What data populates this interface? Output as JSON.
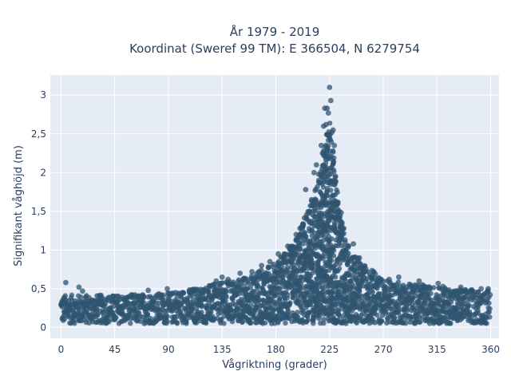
{
  "chart_data": {
    "type": "scatter",
    "title": "År 1979 - 2019",
    "subtitle": "Koordinat (Sweref 99 TM): E 366504, N 6279754",
    "xlabel": "Vågriktning (grader)",
    "ylabel": "Signifikant våghöjd (m)",
    "xlim": [
      -9,
      367
    ],
    "ylim": [
      -0.14,
      3.26
    ],
    "x_ticks": [
      0,
      45,
      90,
      135,
      180,
      225,
      270,
      315,
      360
    ],
    "x_tick_labels": [
      "0",
      "45",
      "90",
      "135",
      "180",
      "225",
      "270",
      "315",
      "360"
    ],
    "y_ticks": [
      0,
      0.5,
      1,
      1.5,
      2,
      2.5,
      3
    ],
    "y_tick_labels": [
      "0",
      "0,5",
      "1",
      "1,5",
      "2",
      "2,5",
      "3"
    ],
    "grid": true,
    "legend": "none",
    "colors": {
      "marker": "#2f5470",
      "plot_bg": "#e5ecf6",
      "grid": "#ffffff",
      "text": "#2a3f5f"
    },
    "envelope": {
      "x": [
        0,
        45,
        90,
        135,
        160,
        180,
        195,
        205,
        212,
        218,
        222,
        225,
        228,
        232,
        238,
        245,
        270,
        315,
        360
      ],
      "y_max": [
        0.42,
        0.42,
        0.45,
        0.58,
        0.68,
        0.85,
        1.1,
        1.45,
        1.75,
        2.1,
        2.45,
        2.7,
        2.3,
        1.7,
        1.2,
        0.95,
        0.62,
        0.52,
        0.48
      ]
    },
    "series": [
      {
        "x": [
          4,
          15,
          18,
          73,
          89,
          96,
          128,
          130,
          135,
          140,
          150,
          160,
          168,
          175,
          182,
          190,
          197,
          202,
          205,
          208,
          210,
          212,
          214,
          216,
          218,
          219,
          220,
          221,
          222,
          223,
          224,
          225,
          226,
          227,
          228,
          229,
          230,
          232,
          234,
          238,
          245,
          250,
          262,
          275,
          283,
          292,
          300,
          303,
          316,
          320,
          335,
          352,
          358
        ],
        "y": [
          0.58,
          0.52,
          0.47,
          0.48,
          0.5,
          0.45,
          0.55,
          0.6,
          0.65,
          0.62,
          0.7,
          0.72,
          0.8,
          0.85,
          0.95,
          1.05,
          1.2,
          1.3,
          1.78,
          1.5,
          1.65,
          2.0,
          2.1,
          1.9,
          2.35,
          2.25,
          2.6,
          2.83,
          2.62,
          2.83,
          2.77,
          3.1,
          2.93,
          2.52,
          2.55,
          2.35,
          1.95,
          1.6,
          1.3,
          1.1,
          1.08,
          0.9,
          0.72,
          0.62,
          0.65,
          0.56,
          0.6,
          0.55,
          0.57,
          0.53,
          0.52,
          0.5,
          0.5
        ]
      }
    ]
  }
}
